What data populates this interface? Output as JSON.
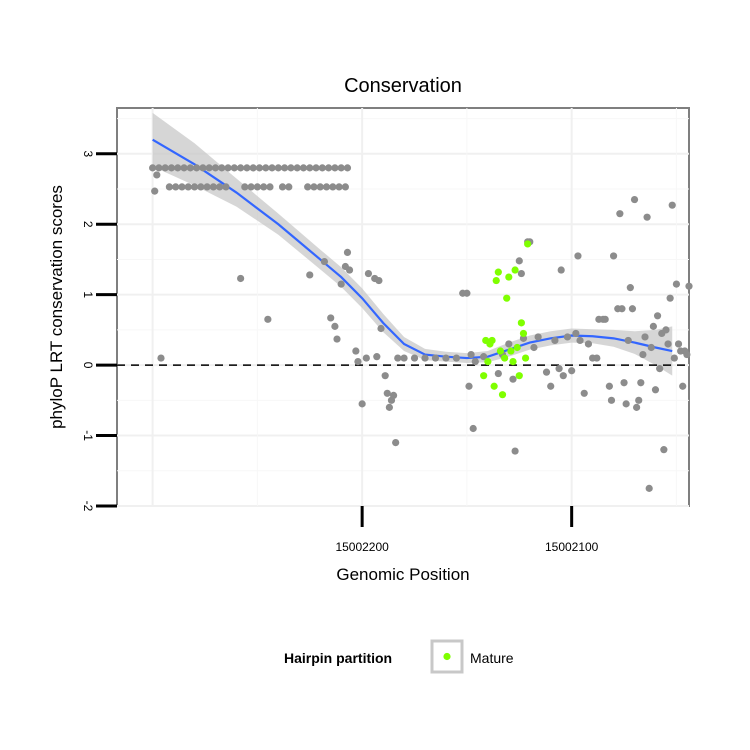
{
  "chart_data": {
    "type": "scatter",
    "title": "Conservation",
    "xlabel": "Genomic Position",
    "ylabel": "phyloP LRT conservation scores",
    "x_reversed": true,
    "xlim": [
      15002317,
      15002044
    ],
    "ylim": [
      -2,
      3.65
    ],
    "x_ticks": [
      15002200,
      15002100
    ],
    "y_ticks": [
      -2,
      -1,
      0,
      1,
      2,
      3
    ],
    "reference_line": {
      "y": 0,
      "style": "dashed"
    },
    "grid": true,
    "legend": {
      "title": "Hairpin partition",
      "placement": "bottom",
      "entries": [
        {
          "label": "Mature",
          "color": "#7fff00"
        }
      ]
    },
    "colors": {
      "other": "#8c8c8c",
      "mature": "#7fff00",
      "smooth": "#3366ff",
      "band": "#c8c8c8"
    },
    "smooth": {
      "x": [
        15002300,
        15002280,
        15002260,
        15002240,
        15002220,
        15002210,
        15002200,
        15002190,
        15002180,
        15002170,
        15002160,
        15002150,
        15002140,
        15002130,
        15002120,
        15002110,
        15002100,
        15002090,
        15002080,
        15002070,
        15002060,
        15002052
      ],
      "y": [
        3.2,
        2.85,
        2.45,
        2.0,
        1.5,
        1.25,
        0.95,
        0.6,
        0.3,
        0.15,
        0.12,
        0.1,
        0.12,
        0.22,
        0.32,
        0.38,
        0.42,
        0.41,
        0.38,
        0.32,
        0.25,
        0.2
      ],
      "se": [
        0.38,
        0.3,
        0.2,
        0.15,
        0.14,
        0.14,
        0.14,
        0.13,
        0.1,
        0.08,
        0.07,
        0.07,
        0.08,
        0.1,
        0.1,
        0.1,
        0.1,
        0.1,
        0.12,
        0.16,
        0.25,
        0.35
      ]
    },
    "series_other": [
      [
        15002300,
        2.8
      ],
      [
        15002297,
        2.8
      ],
      [
        15002294,
        2.8
      ],
      [
        15002291,
        2.8
      ],
      [
        15002288,
        2.8
      ],
      [
        15002285,
        2.8
      ],
      [
        15002282,
        2.8
      ],
      [
        15002279,
        2.8
      ],
      [
        15002276,
        2.8
      ],
      [
        15002273,
        2.8
      ],
      [
        15002270,
        2.8
      ],
      [
        15002267,
        2.8
      ],
      [
        15002264,
        2.8
      ],
      [
        15002261,
        2.8
      ],
      [
        15002258,
        2.8
      ],
      [
        15002255,
        2.8
      ],
      [
        15002252,
        2.8
      ],
      [
        15002249,
        2.8
      ],
      [
        15002246,
        2.8
      ],
      [
        15002243,
        2.8
      ],
      [
        15002240,
        2.8
      ],
      [
        15002237,
        2.8
      ],
      [
        15002234,
        2.8
      ],
      [
        15002231,
        2.8
      ],
      [
        15002228,
        2.8
      ],
      [
        15002225,
        2.8
      ],
      [
        15002222,
        2.8
      ],
      [
        15002219,
        2.8
      ],
      [
        15002216,
        2.8
      ],
      [
        15002213,
        2.8
      ],
      [
        15002210,
        2.8
      ],
      [
        15002207,
        2.8
      ],
      [
        15002292,
        2.53
      ],
      [
        15002289,
        2.53
      ],
      [
        15002286,
        2.53
      ],
      [
        15002283,
        2.53
      ],
      [
        15002280,
        2.53
      ],
      [
        15002277,
        2.53
      ],
      [
        15002274,
        2.53
      ],
      [
        15002271,
        2.53
      ],
      [
        15002268,
        2.53
      ],
      [
        15002265,
        2.53
      ],
      [
        15002256,
        2.53
      ],
      [
        15002253,
        2.53
      ],
      [
        15002250,
        2.53
      ],
      [
        15002247,
        2.53
      ],
      [
        15002244,
        2.53
      ],
      [
        15002238,
        2.53
      ],
      [
        15002235,
        2.53
      ],
      [
        15002226,
        2.53
      ],
      [
        15002223,
        2.53
      ],
      [
        15002220,
        2.53
      ],
      [
        15002217,
        2.53
      ],
      [
        15002214,
        2.53
      ],
      [
        15002211,
        2.53
      ],
      [
        15002208,
        2.53
      ],
      [
        15002299,
        2.47
      ],
      [
        15002298,
        2.7
      ],
      [
        15002296,
        0.1
      ],
      [
        15002258,
        1.23
      ],
      [
        15002245,
        0.65
      ],
      [
        15002225,
        1.28
      ],
      [
        15002218,
        1.47
      ],
      [
        15002215,
        0.67
      ],
      [
        15002213,
        0.55
      ],
      [
        15002212,
        0.37
      ],
      [
        15002210,
        1.15
      ],
      [
        15002208,
        1.4
      ],
      [
        15002207,
        1.6
      ],
      [
        15002206,
        1.35
      ],
      [
        15002203,
        0.2
      ],
      [
        15002202,
        0.05
      ],
      [
        15002200,
        -0.55
      ],
      [
        15002198,
        0.1
      ],
      [
        15002197,
        1.3
      ],
      [
        15002194,
        1.23
      ],
      [
        15002193,
        0.12
      ],
      [
        15002192,
        1.2
      ],
      [
        15002191,
        0.52
      ],
      [
        15002189,
        -0.15
      ],
      [
        15002188,
        -0.4
      ],
      [
        15002187,
        -0.6
      ],
      [
        15002186,
        -0.5
      ],
      [
        15002185,
        -0.43
      ],
      [
        15002184,
        -1.1
      ],
      [
        15002183,
        0.1
      ],
      [
        15002180,
        0.1
      ],
      [
        15002175,
        0.1
      ],
      [
        15002170,
        0.1
      ],
      [
        15002165,
        0.1
      ],
      [
        15002160,
        0.1
      ],
      [
        15002155,
        0.1
      ],
      [
        15002152,
        1.02
      ],
      [
        15002150,
        1.02
      ],
      [
        15002149,
        -0.3
      ],
      [
        15002148,
        0.15
      ],
      [
        15002147,
        -0.9
      ],
      [
        15002146,
        0.05
      ],
      [
        15002142,
        0.12
      ],
      [
        15002135,
        -0.12
      ],
      [
        15002133,
        0.15
      ],
      [
        15002130,
        0.3
      ],
      [
        15002128,
        -0.2
      ],
      [
        15002127,
        -1.22
      ],
      [
        15002125,
        1.48
      ],
      [
        15002124,
        1.3
      ],
      [
        15002123,
        0.38
      ],
      [
        15002121,
        1.75
      ],
      [
        15002120,
        1.75
      ],
      [
        15002118,
        0.25
      ],
      [
        15002116,
        0.4
      ],
      [
        15002112,
        -0.1
      ],
      [
        15002110,
        -0.3
      ],
      [
        15002108,
        0.35
      ],
      [
        15002106,
        -0.05
      ],
      [
        15002105,
        1.35
      ],
      [
        15002104,
        -0.15
      ],
      [
        15002102,
        0.4
      ],
      [
        15002100,
        -0.08
      ],
      [
        15002098,
        0.45
      ],
      [
        15002097,
        1.55
      ],
      [
        15002096,
        0.35
      ],
      [
        15002094,
        -0.4
      ],
      [
        15002092,
        0.3
      ],
      [
        15002090,
        0.1
      ],
      [
        15002088,
        0.1
      ],
      [
        15002087,
        0.65
      ],
      [
        15002085,
        0.65
      ],
      [
        15002084,
        0.65
      ],
      [
        15002082,
        -0.3
      ],
      [
        15002081,
        -0.5
      ],
      [
        15002080,
        1.55
      ],
      [
        15002078,
        0.8
      ],
      [
        15002077,
        2.15
      ],
      [
        15002076,
        0.8
      ],
      [
        15002075,
        -0.25
      ],
      [
        15002074,
        -0.55
      ],
      [
        15002073,
        0.35
      ],
      [
        15002072,
        1.1
      ],
      [
        15002071,
        0.8
      ],
      [
        15002070,
        2.35
      ],
      [
        15002069,
        -0.6
      ],
      [
        15002068,
        -0.5
      ],
      [
        15002067,
        -0.25
      ],
      [
        15002066,
        0.15
      ],
      [
        15002065,
        0.4
      ],
      [
        15002064,
        2.1
      ],
      [
        15002063,
        -1.75
      ],
      [
        15002062,
        0.25
      ],
      [
        15002061,
        0.55
      ],
      [
        15002060,
        -0.35
      ],
      [
        15002059,
        0.7
      ],
      [
        15002058,
        -0.05
      ],
      [
        15002057,
        0.45
      ],
      [
        15002056,
        -1.2
      ],
      [
        15002055,
        0.5
      ],
      [
        15002054,
        0.3
      ],
      [
        15002053,
        0.95
      ],
      [
        15002052,
        2.27
      ],
      [
        15002051,
        0.1
      ],
      [
        15002050,
        1.15
      ],
      [
        15002049,
        0.3
      ],
      [
        15002048,
        0.2
      ],
      [
        15002047,
        -0.3
      ],
      [
        15002046,
        0.2
      ],
      [
        15002045,
        0.15
      ],
      [
        15002044,
        1.12
      ]
    ],
    "series_mature": [
      [
        15002142,
        -0.15
      ],
      [
        15002141,
        0.35
      ],
      [
        15002140,
        0.05
      ],
      [
        15002138,
        0.35
      ],
      [
        15002137,
        -0.3
      ],
      [
        15002136,
        1.2
      ],
      [
        15002135,
        1.32
      ],
      [
        15002134,
        0.2
      ],
      [
        15002133,
        -0.42
      ],
      [
        15002132,
        0.1
      ],
      [
        15002131,
        0.95
      ],
      [
        15002130,
        1.25
      ],
      [
        15002129,
        0.2
      ],
      [
        15002128,
        0.05
      ],
      [
        15002127,
        1.35
      ],
      [
        15002126,
        0.25
      ],
      [
        15002125,
        -0.15
      ],
      [
        15002124,
        0.6
      ],
      [
        15002123,
        0.45
      ],
      [
        15002122,
        0.1
      ],
      [
        15002121,
        1.72
      ],
      [
        15002139,
        0.3
      ]
    ]
  }
}
